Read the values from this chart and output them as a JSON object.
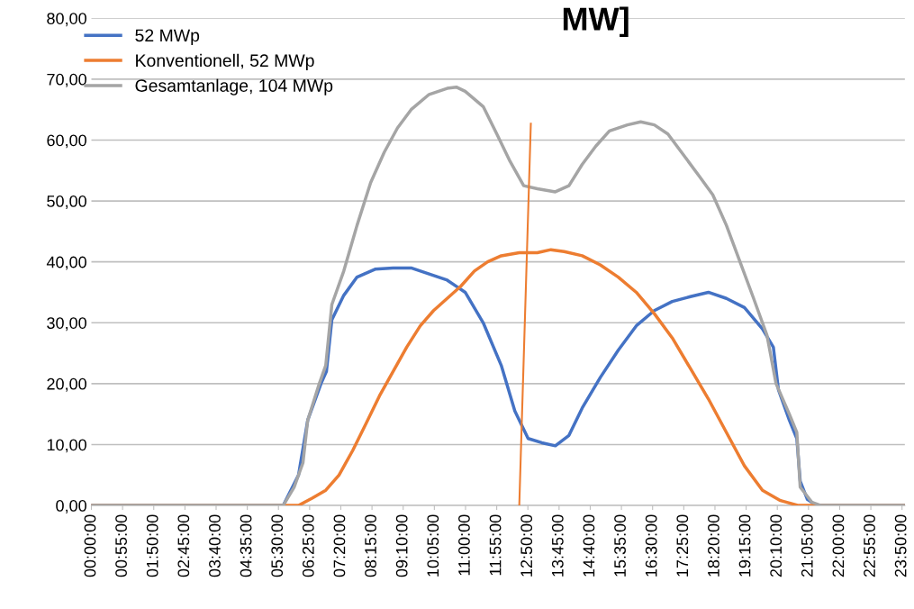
{
  "chart_data": {
    "type": "line",
    "title": "MW]",
    "grid": "y",
    "legend": "top left",
    "marker": "none",
    "line_style": "solid",
    "ylim": [
      0,
      80
    ],
    "yticks": [
      {
        "value": 0,
        "label": "0,00"
      },
      {
        "value": 10,
        "label": "10,00"
      },
      {
        "value": 20,
        "label": "20,00"
      },
      {
        "value": 30,
        "label": "30,00"
      },
      {
        "value": 40,
        "label": "40,00"
      },
      {
        "value": 50,
        "label": "50,00"
      },
      {
        "value": 60,
        "label": "60,00"
      },
      {
        "value": 70,
        "label": "70,00"
      },
      {
        "value": 80,
        "label": "80,00"
      }
    ],
    "xlim": [
      0,
      23.9167
    ],
    "xticks": [
      {
        "value": 0,
        "label": "00:00:00"
      },
      {
        "value": 0.9167,
        "label": "00:55:00"
      },
      {
        "value": 1.8333,
        "label": "01:50:00"
      },
      {
        "value": 2.75,
        "label": "02:45:00"
      },
      {
        "value": 3.6667,
        "label": "03:40:00"
      },
      {
        "value": 4.5833,
        "label": "04:35:00"
      },
      {
        "value": 5.5,
        "label": "05:30:00"
      },
      {
        "value": 6.4167,
        "label": "06:25:00"
      },
      {
        "value": 7.3333,
        "label": "07:20:00"
      },
      {
        "value": 8.25,
        "label": "08:15:00"
      },
      {
        "value": 9.1667,
        "label": "09:10:00"
      },
      {
        "value": 10.0833,
        "label": "10:05:00"
      },
      {
        "value": 11,
        "label": "11:00:00"
      },
      {
        "value": 11.9167,
        "label": "11:55:00"
      },
      {
        "value": 12.8333,
        "label": "12:50:00"
      },
      {
        "value": 13.75,
        "label": "13:45:00"
      },
      {
        "value": 14.6667,
        "label": "14:40:00"
      },
      {
        "value": 15.5833,
        "label": "15:35:00"
      },
      {
        "value": 16.5,
        "label": "16:30:00"
      },
      {
        "value": 17.4167,
        "label": "17:25:00"
      },
      {
        "value": 18.3333,
        "label": "18:20:00"
      },
      {
        "value": 19.25,
        "label": "19:15:00"
      },
      {
        "value": 20.1667,
        "label": "20:10:00"
      },
      {
        "value": 21.0833,
        "label": "21:05:00"
      },
      {
        "value": 22,
        "label": "22:00:00"
      },
      {
        "value": 22.9167,
        "label": "22:55:00"
      },
      {
        "value": 23.8333,
        "label": "23:50:00"
      }
    ],
    "series": [
      {
        "name": "52 MWp",
        "color": "#4472c4",
        "x": [
          0,
          5.64,
          6.09,
          6.36,
          6.75,
          6.91,
          7.07,
          7.42,
          7.81,
          8.34,
          8.87,
          9.4,
          9.93,
          10.46,
          10.99,
          11.52,
          12.05,
          12.45,
          12.84,
          13.24,
          13.64,
          14.04,
          14.43,
          14.96,
          15.49,
          16.02,
          16.55,
          17.08,
          17.61,
          18.14,
          18.67,
          19.2,
          19.73,
          20.05,
          20.2,
          20.52,
          20.74,
          20.84,
          21.05,
          21.32,
          23.9167
        ],
        "values": [
          0,
          0,
          5,
          14,
          20,
          22,
          30.5,
          34.5,
          37.5,
          38.8,
          39,
          39,
          38,
          37,
          35,
          30,
          23,
          15.5,
          11,
          10.3,
          9.8,
          11.5,
          16,
          21,
          25.5,
          29.5,
          32,
          33.5,
          34.3,
          35,
          34,
          32.5,
          29,
          26,
          19,
          14,
          11,
          4,
          1,
          0,
          0
        ]
      },
      {
        "name": "Konventionell, 52 MWp",
        "color": "#ed7d31",
        "x": [
          0,
          6.09,
          6.49,
          6.89,
          7.28,
          7.68,
          8.08,
          8.47,
          8.87,
          9.27,
          9.67,
          10.06,
          10.46,
          10.86,
          11.26,
          11.65,
          12.05,
          12.58,
          13.11,
          13.51,
          13.9,
          14.43,
          14.96,
          15.49,
          16.02,
          16.55,
          17.08,
          17.61,
          18.14,
          18.67,
          19.2,
          19.73,
          20.26,
          20.79,
          23.9167
        ],
        "values": [
          0,
          0,
          1.2,
          2.5,
          5,
          9,
          13.5,
          18,
          22,
          26,
          29.5,
          32,
          34,
          36,
          38.5,
          40,
          41,
          41.5,
          41.5,
          42,
          41.7,
          41,
          39.5,
          37.5,
          35,
          31.5,
          27.5,
          22.5,
          17.5,
          12,
          6.5,
          2.5,
          0.8,
          0,
          0
        ]
      },
      {
        "name": "Gesamtanlage, 104 MWp",
        "color": "#a5a5a5",
        "x": [
          0,
          5.64,
          5.96,
          6.22,
          6.36,
          6.7,
          6.89,
          7.07,
          7.42,
          7.81,
          8.21,
          8.61,
          9.0,
          9.4,
          9.93,
          10.46,
          10.73,
          10.99,
          11.52,
          11.92,
          12.31,
          12.71,
          13.11,
          13.64,
          14.04,
          14.43,
          14.83,
          15.23,
          15.76,
          16.15,
          16.55,
          16.95,
          17.35,
          17.88,
          18.27,
          18.67,
          19.07,
          19.47,
          19.86,
          20.13,
          20.52,
          20.74,
          20.84,
          21.19,
          21.45,
          23.9167
        ],
        "values": [
          0,
          0,
          3,
          7,
          14,
          20,
          23,
          33,
          38.5,
          46,
          53,
          58,
          62,
          65,
          67.5,
          68.5,
          68.7,
          68,
          65.5,
          61,
          56.5,
          52.5,
          52,
          51.5,
          52.5,
          56,
          59,
          61.5,
          62.5,
          63,
          62.5,
          61,
          58,
          54,
          51,
          46,
          40,
          34,
          28,
          20,
          15,
          12,
          3,
          0.5,
          0,
          0
        ]
      },
      {
        "color": "#ed7d31",
        "x": [
          12.58,
          12.92
        ],
        "values": [
          0,
          62.7
        ]
      }
    ]
  }
}
